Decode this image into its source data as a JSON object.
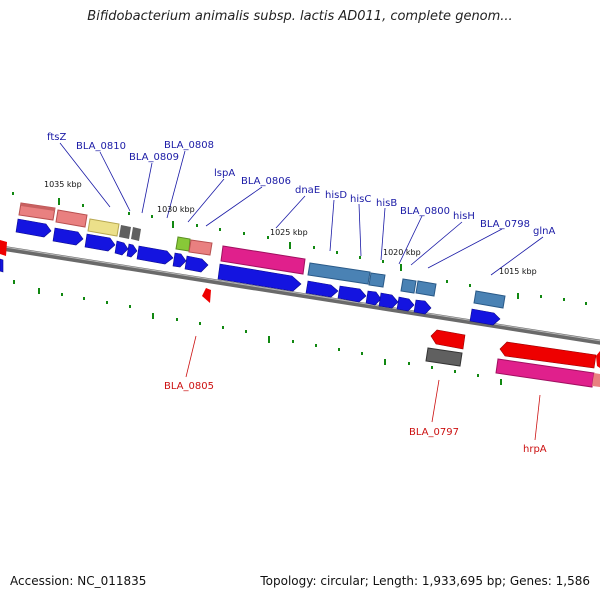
{
  "title": "Bifidobacterium animalis subsp. lactis AD011, complete genom...",
  "footer": {
    "accession": "Accession: NC_011835",
    "summary": "Topology: circular; Length: 1,933,695 bp; Genes: 1,586"
  },
  "scale_labels": [
    "1035 kbp",
    "1030 kbp",
    "1025 kbp",
    "1020 kbp",
    "1015 kbp"
  ],
  "forward_gene_labels": [
    "ftsZ",
    "BLA_0810",
    "BLA_0809",
    "BLA_0808",
    "lspA",
    "BLA_0806",
    "dnaE",
    "hisD",
    "hisC",
    "hisB",
    "BLA_0800",
    "hisH",
    "BLA_0798",
    "glnA"
  ],
  "reverse_gene_labels": [
    "BLA_0805",
    "BLA_0797",
    "hrpA"
  ],
  "colors": {
    "blue_gene": "#1414e0",
    "red_gene": "#ee0000",
    "salmon": "#e98080",
    "pink": "#e0208c",
    "steel": "#4a82b4",
    "yellow": "#ece08a",
    "grey": "#606060",
    "green": "#88c838",
    "tick": "#118811",
    "backbone": "#7a7a7a"
  }
}
